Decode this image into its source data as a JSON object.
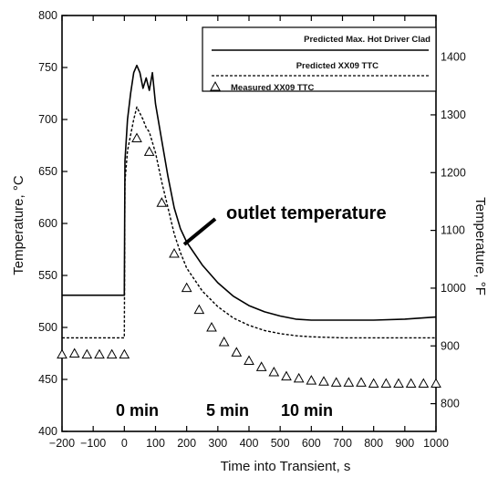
{
  "chart_data": {
    "type": "line",
    "xlabel": "Time into Transient, s",
    "ylabel_left": "Temperature, °C",
    "ylabel_right": "Temperature, °F",
    "xlim": [
      -200,
      1000
    ],
    "ylim_left": [
      400,
      800
    ],
    "ylim_right_F": [
      752,
      1472
    ],
    "x_ticks": [
      -200,
      -100,
      0,
      100,
      200,
      300,
      400,
      500,
      600,
      700,
      800,
      900,
      1000
    ],
    "y_ticks_left": [
      400,
      450,
      500,
      550,
      600,
      650,
      700,
      750,
      800
    ],
    "y_ticks_right": [
      800,
      900,
      1000,
      1100,
      1200,
      1300,
      1400
    ],
    "grid": false,
    "legend_position": "top-right",
    "series": [
      {
        "name": "Predicted Max. Hot Driver Clad",
        "style": "solid",
        "color": "#000000",
        "x": [
          -200,
          0,
          2,
          10,
          20,
          30,
          40,
          50,
          60,
          70,
          80,
          90,
          100,
          120,
          140,
          160,
          180,
          200,
          250,
          300,
          350,
          400,
          450,
          500,
          550,
          600,
          700,
          800,
          900,
          1000
        ],
        "y": [
          531,
          531,
          660,
          700,
          725,
          745,
          752,
          745,
          730,
          740,
          728,
          745,
          715,
          680,
          645,
          615,
          595,
          582,
          560,
          543,
          530,
          521,
          515,
          511,
          508,
          507,
          507,
          507,
          508,
          510
        ]
      },
      {
        "name": "Predicted XX09 TTC",
        "style": "dashed",
        "color": "#000000",
        "x": [
          -200,
          0,
          2,
          10,
          20,
          30,
          40,
          50,
          60,
          70,
          80,
          100,
          120,
          140,
          160,
          180,
          200,
          250,
          300,
          350,
          400,
          450,
          500,
          550,
          600,
          700,
          800,
          900,
          1000
        ],
        "y": [
          490,
          490,
          640,
          670,
          685,
          700,
          712,
          706,
          700,
          692,
          688,
          668,
          640,
          615,
          590,
          572,
          557,
          535,
          520,
          509,
          502,
          497,
          494,
          492,
          491,
          490,
          490,
          490,
          490
        ]
      },
      {
        "name": "Measured XX09 TTC",
        "style": "markers",
        "marker": "triangle",
        "color": "#000000",
        "x": [
          -200,
          -160,
          -120,
          -80,
          -40,
          0,
          40,
          80,
          120,
          160,
          200,
          240,
          280,
          320,
          360,
          400,
          440,
          480,
          520,
          560,
          600,
          640,
          680,
          720,
          760,
          800,
          840,
          880,
          920,
          960,
          1000
        ],
        "y": [
          474,
          475,
          474,
          474,
          474,
          474,
          682,
          669,
          620,
          571,
          538,
          517,
          500,
          486,
          476,
          468,
          462,
          457,
          453,
          451,
          449,
          448,
          447,
          447,
          447,
          446,
          446,
          446,
          446,
          446,
          446
        ]
      }
    ],
    "annotations": {
      "outlet": "outlet temperature",
      "min0": "0 min",
      "min5": "5 min",
      "min10": "10 min"
    }
  }
}
